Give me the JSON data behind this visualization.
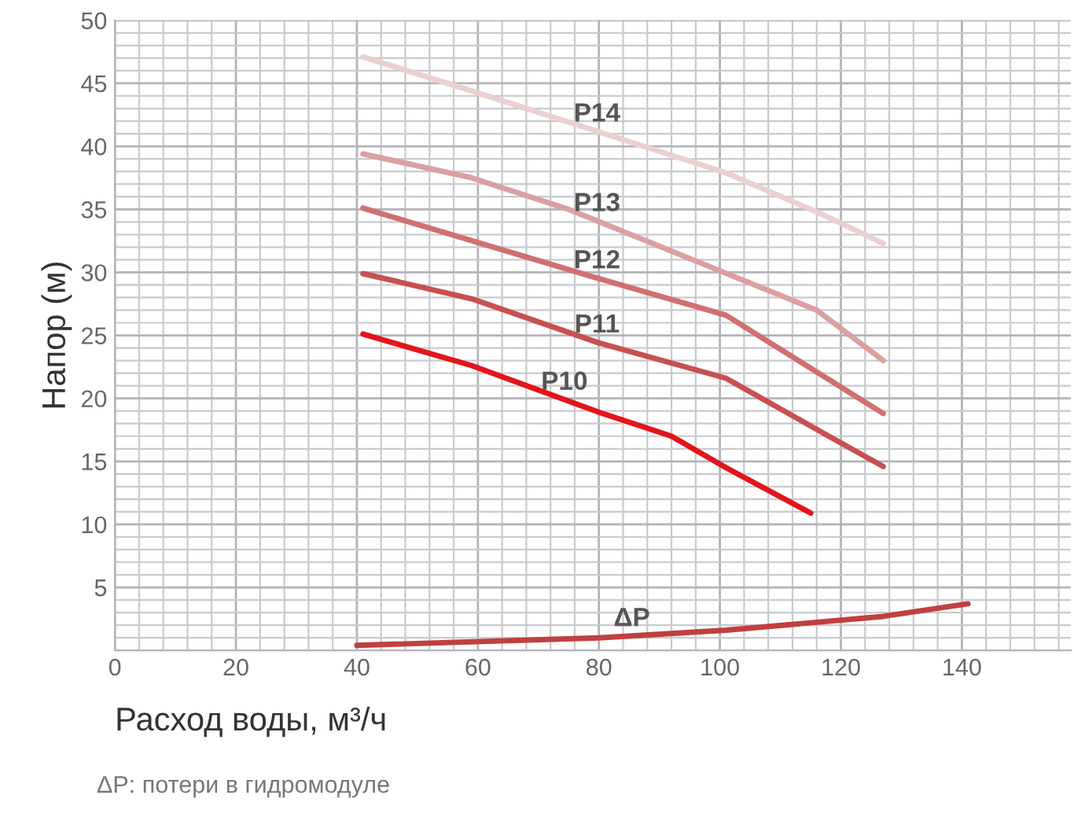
{
  "chart_data": {
    "type": "line",
    "xlabel": "Расход воды, м³/ч",
    "ylabel": "Напор (м)",
    "xlim": [
      0,
      158
    ],
    "xticks": [
      0,
      20,
      40,
      60,
      80,
      100,
      120,
      140
    ],
    "ylim": [
      0,
      50
    ],
    "yticks": [
      5,
      10,
      15,
      20,
      25,
      30,
      35,
      40,
      45,
      50
    ],
    "grid": true,
    "legend": false,
    "marker": "none",
    "line_style": "solid",
    "annotations": [
      "ΔP: потери в гидромодуле"
    ],
    "series": [
      {
        "name": "P14",
        "color": "#ead0d0",
        "x": [
          41,
          59,
          101,
          116,
          127
        ],
        "values": [
          47.1,
          44.4,
          37.9,
          34.8,
          32.3
        ]
      },
      {
        "name": "P13",
        "color": "#dba0a0",
        "x": [
          41,
          59,
          75,
          116,
          127
        ],
        "values": [
          39.4,
          37.5,
          35,
          27,
          23
        ]
      },
      {
        "name": "P12",
        "color": "#d07070",
        "x": [
          41,
          80,
          101,
          127
        ],
        "values": [
          35.1,
          29.5,
          26.6,
          18.8
        ]
      },
      {
        "name": "P11",
        "color": "#c85050",
        "x": [
          41,
          59,
          80,
          101,
          118,
          127
        ],
        "values": [
          29.9,
          27.9,
          24.4,
          21.6,
          17,
          14.6
        ]
      },
      {
        "name": "P10",
        "color": "#e3141c",
        "x": [
          41,
          59,
          80,
          92,
          101,
          115
        ],
        "values": [
          25.1,
          22.6,
          18.9,
          17,
          14.5,
          10.9
        ]
      },
      {
        "name": "ΔP",
        "color": "#c0403e",
        "x": [
          40,
          80,
          101,
          127,
          141
        ],
        "values": [
          0.4,
          1.0,
          1.6,
          2.7,
          3.7
        ]
      }
    ]
  }
}
